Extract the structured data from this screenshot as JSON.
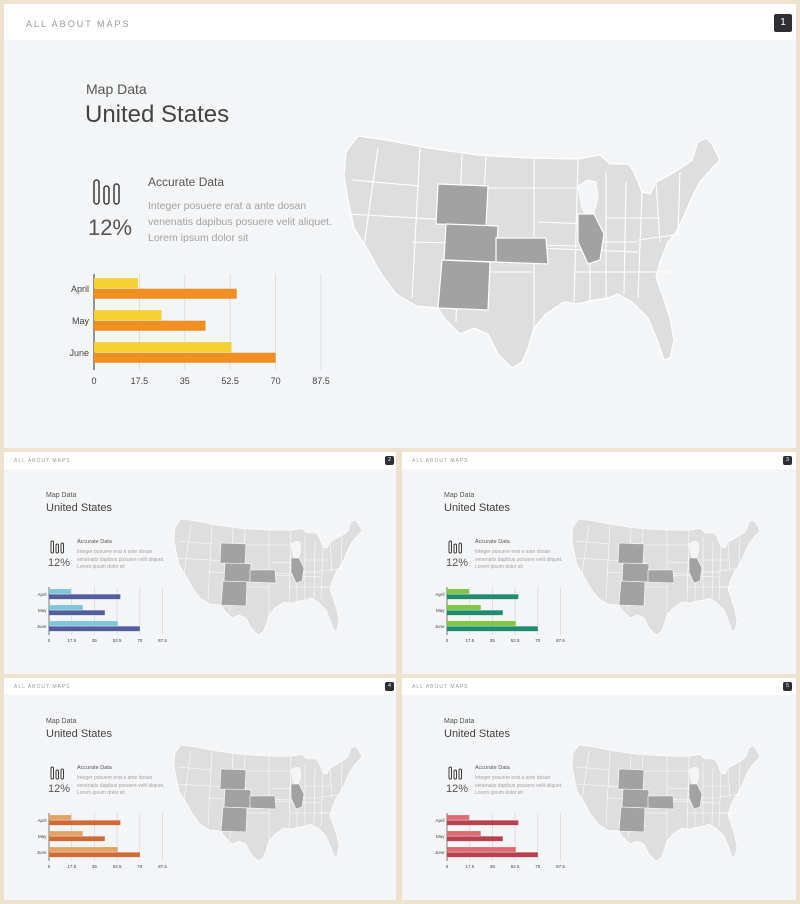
{
  "brand": "ALL ABOUT MAPS",
  "map_label": "Map Data",
  "title": "United States",
  "accurate_title": "Accurate Data",
  "accurate_text": "Integer posuere erat a ante dosan venenatis dapibus posuere velit aliquet. Lorem ipsum dolor sit",
  "percent": "12%",
  "icon": "bar-stat-icon",
  "map_colors": {
    "base": "#dedede",
    "highlight": "#a2a2a2",
    "border": "#ffffff"
  },
  "slides": [
    {
      "page": "1",
      "colors": {
        "a": "#f5d033",
        "b": "#f08f22"
      }
    },
    {
      "page": "2",
      "colors": {
        "a": "#7fc6dd",
        "b": "#535d9c"
      }
    },
    {
      "page": "3",
      "colors": {
        "a": "#7cc545",
        "b": "#1f8a6e"
      }
    },
    {
      "page": "4",
      "colors": {
        "a": "#e3a463",
        "b": "#cf6b36"
      }
    },
    {
      "page": "5",
      "colors": {
        "a": "#de6b72",
        "b": "#b8414f"
      }
    }
  ],
  "chart_data": {
    "type": "bar",
    "orientation": "horizontal",
    "categories": [
      "April",
      "May",
      "June"
    ],
    "series": [
      {
        "values": [
          17,
          26,
          53
        ]
      },
      {
        "values": [
          55,
          43,
          70
        ]
      }
    ],
    "xticks": [
      "0",
      "17.5",
      "35",
      "52.5",
      "70",
      "87.5"
    ],
    "xlim": [
      0,
      87.5
    ],
    "grid": true
  }
}
